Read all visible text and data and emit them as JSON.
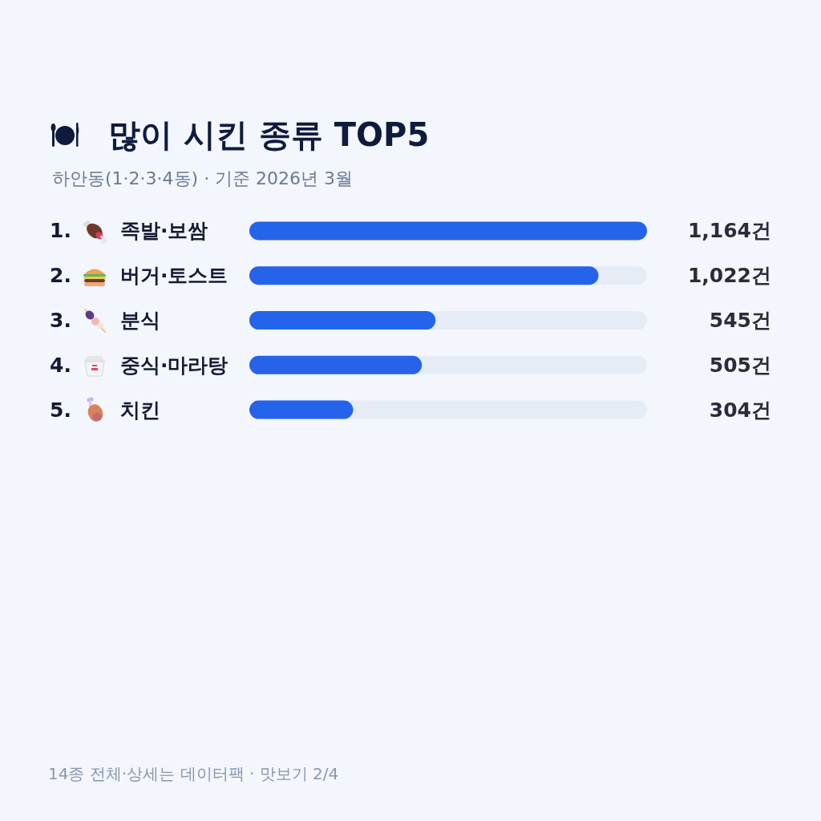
{
  "chart_data": {
    "type": "bar",
    "orientation": "horizontal",
    "title": "많이 시킨 종류 TOP5",
    "subtitle": "하안동(1·2·3·4동) · 기준 2026년 3월",
    "categories": [
      "1. 족발·보쌈",
      "2. 버거·토스트",
      "3. 분식",
      "4. 중식·마라탕",
      "5. 치킨"
    ],
    "values": [
      1164,
      1022,
      545,
      505,
      304
    ],
    "value_labels": [
      "1,164건",
      "1,022건",
      "545건",
      "505건",
      "304건"
    ],
    "color": "#2563eb",
    "tick_labels": "y",
    "annotations": [
      "14종 전체·상세는 데이터팩 · 맛보기 2/4"
    ]
  }
}
